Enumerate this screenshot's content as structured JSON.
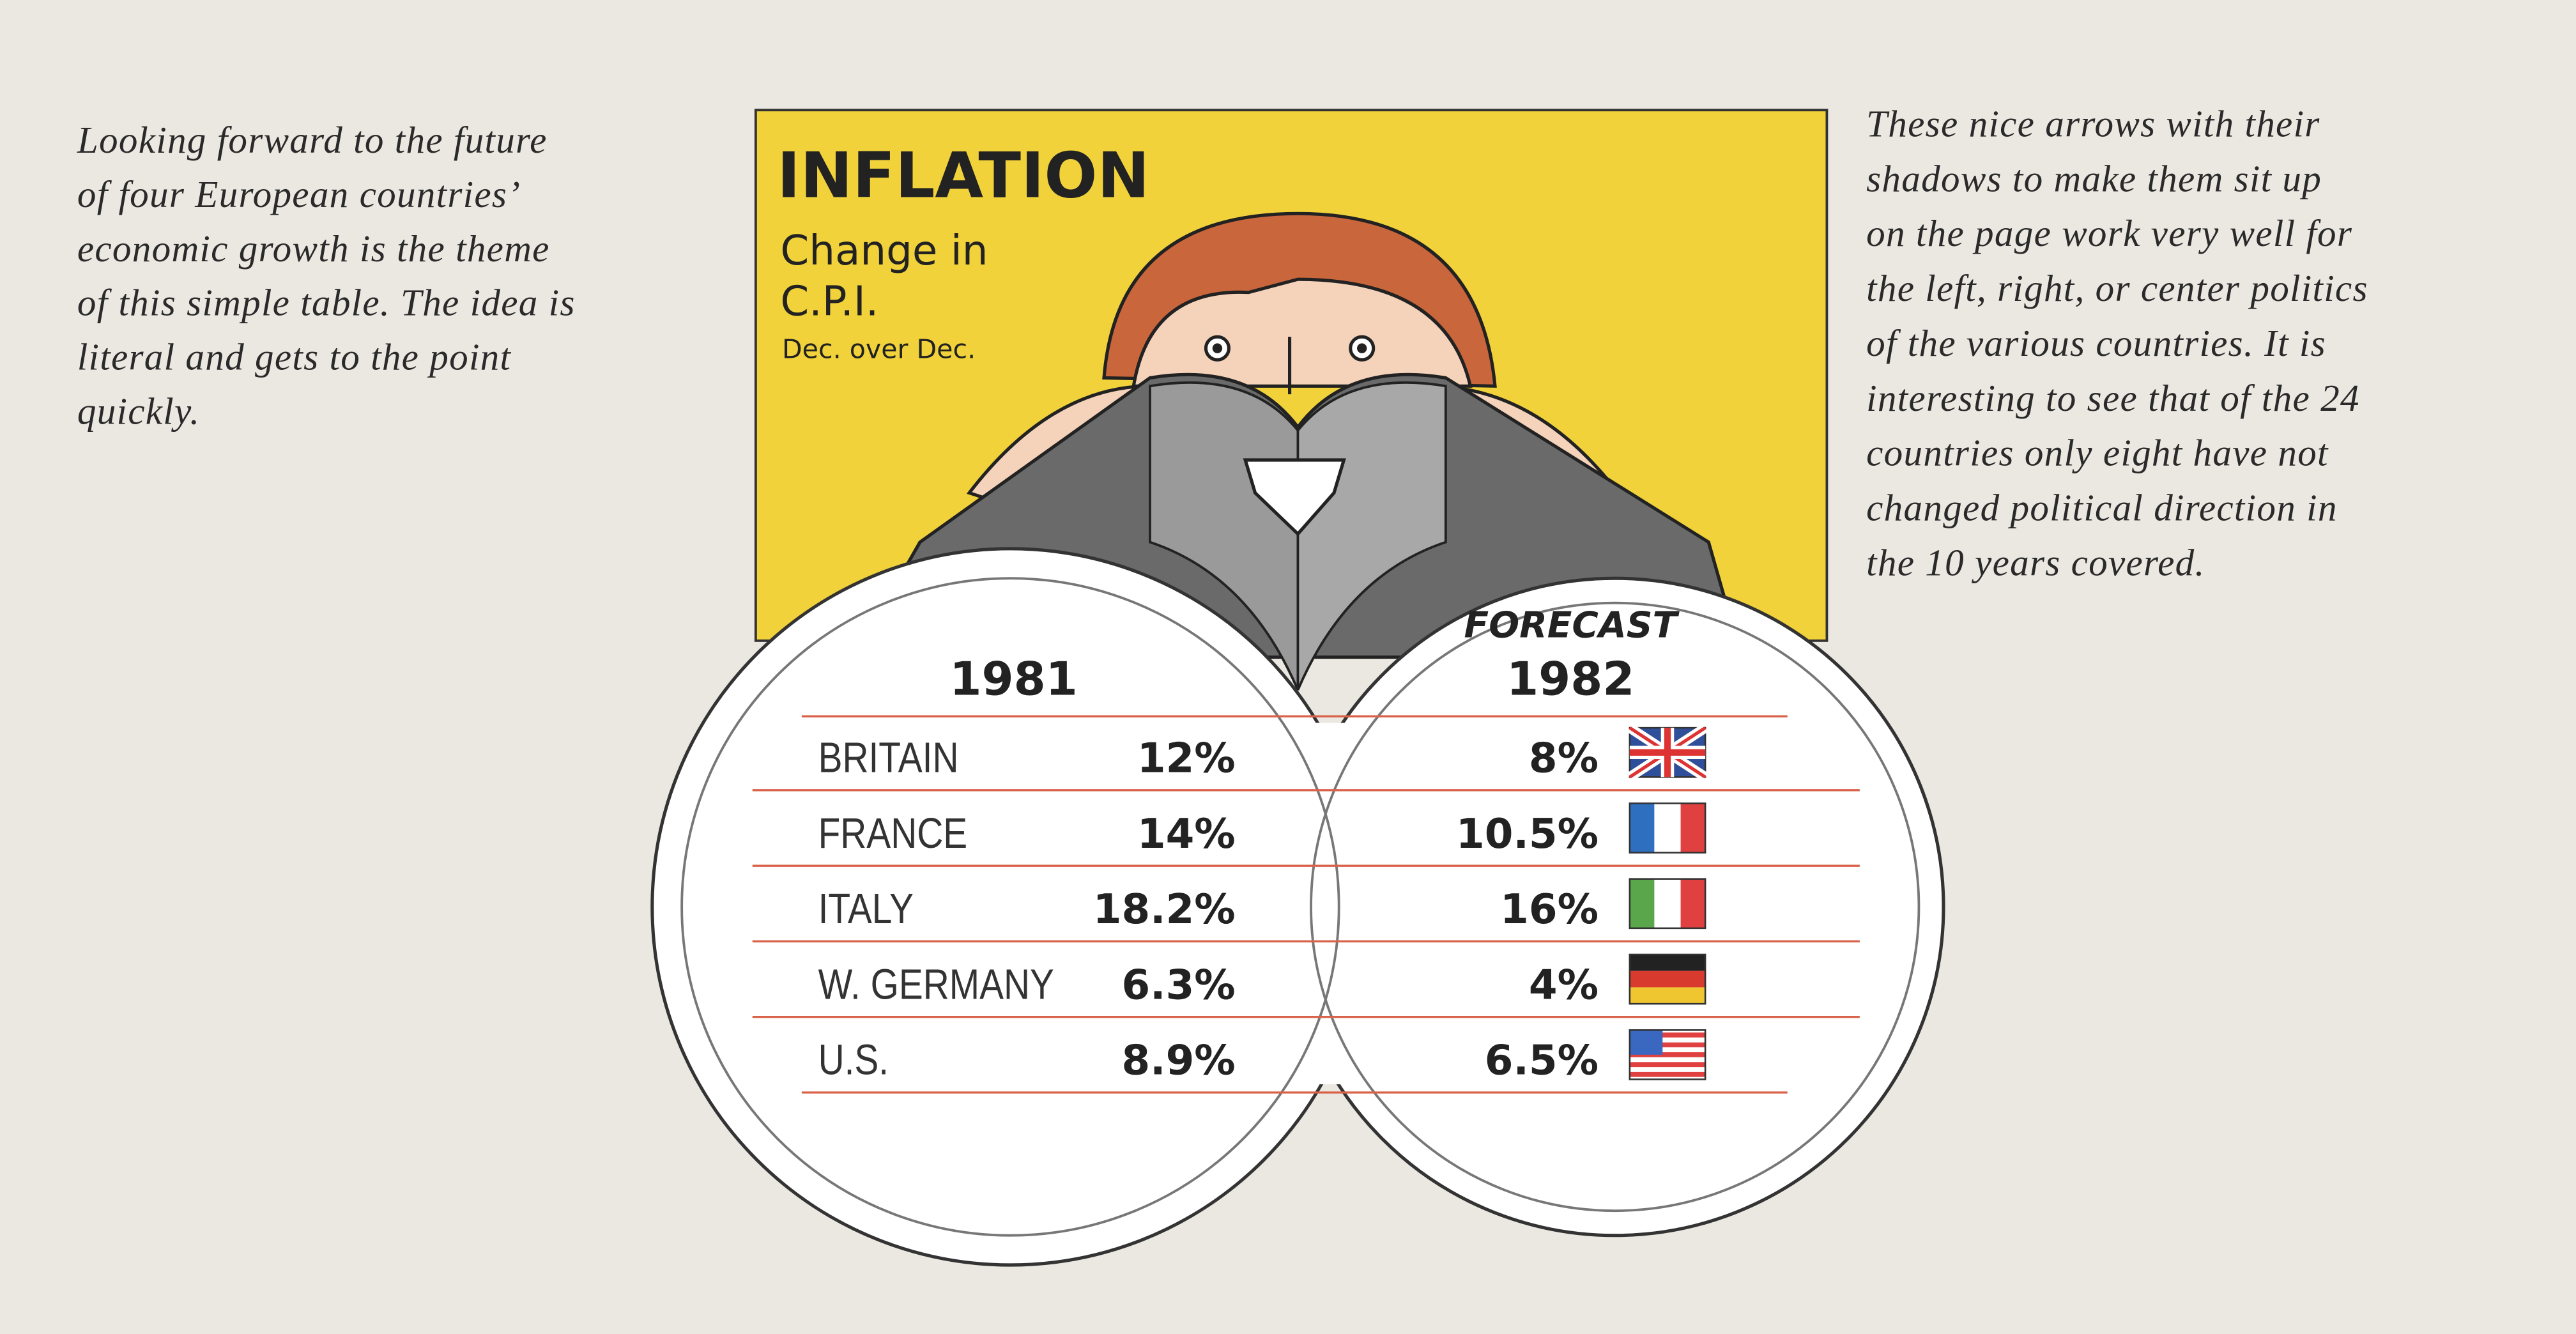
{
  "left_caption": {
    "lines": [
      "Looking forward to the future",
      "of four European countries’",
      "economic growth is the theme",
      "of this simple table. The idea is",
      "literal and gets to the point",
      "quickly."
    ]
  },
  "right_caption": {
    "lines": [
      "These nice arrows with their",
      "shadows to make them sit up",
      "on the page work very well for",
      "the left, right, or center politics",
      "of the various countries. It is",
      "interesting to see that of the 24",
      "countries only eight have not",
      "changed political direction in",
      "the 10 years covered."
    ]
  },
  "graphic": {
    "title": "INFLATION",
    "subtitle_lines": [
      "Change in",
      "C.P.I."
    ],
    "note": "Dec. over Dec."
  },
  "table": {
    "header": {
      "year_1981": "1981",
      "forecast_label": "FORECAST",
      "year_1982": "1982"
    },
    "rows": [
      [
        "BRITAIN",
        "12%",
        "8%"
      ],
      [
        "FRANCE",
        "14%",
        "10.5%"
      ],
      [
        "ITALY",
        "18.2%",
        "16%"
      ],
      [
        "W. GERMANY",
        "6.3%",
        "4%"
      ],
      [
        "U.S.",
        "8.9%",
        "6.5%"
      ]
    ]
  }
}
